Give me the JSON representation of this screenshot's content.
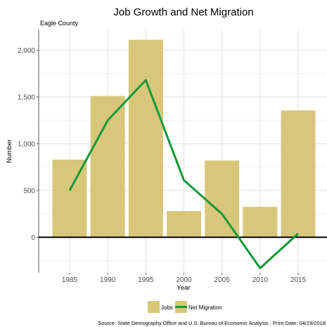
{
  "chart_data": {
    "type": "bar+line",
    "title": "Job Growth and Net Migration",
    "subtitle": "Eagle County",
    "xlabel": "Year",
    "ylabel": "Number",
    "categories": [
      "1985",
      "1990",
      "1995",
      "2000",
      "2005",
      "2010",
      "2015"
    ],
    "x_ticks": [
      "1985",
      "1990",
      "1995",
      "2000",
      "2005",
      "2010",
      "2015"
    ],
    "y_ticks": [
      "0",
      "500",
      "1,000",
      "1,500",
      "2,000"
    ],
    "ylim": [
      -380,
      2220
    ],
    "grid": true,
    "legend_position": "bottom",
    "series": [
      {
        "name": "Jobs",
        "type": "bar",
        "color": "#d8c77a",
        "values": [
          830,
          1510,
          2110,
          280,
          820,
          325,
          1355
        ]
      },
      {
        "name": "Net Migration",
        "type": "line",
        "color": "#129839",
        "values": [
          500,
          1250,
          1680,
          610,
          250,
          -330,
          40
        ]
      }
    ],
    "caption": "Source: State Demography Office and U.S. Bureau of Economic Analysis , Print Date: 04/19/2018"
  }
}
